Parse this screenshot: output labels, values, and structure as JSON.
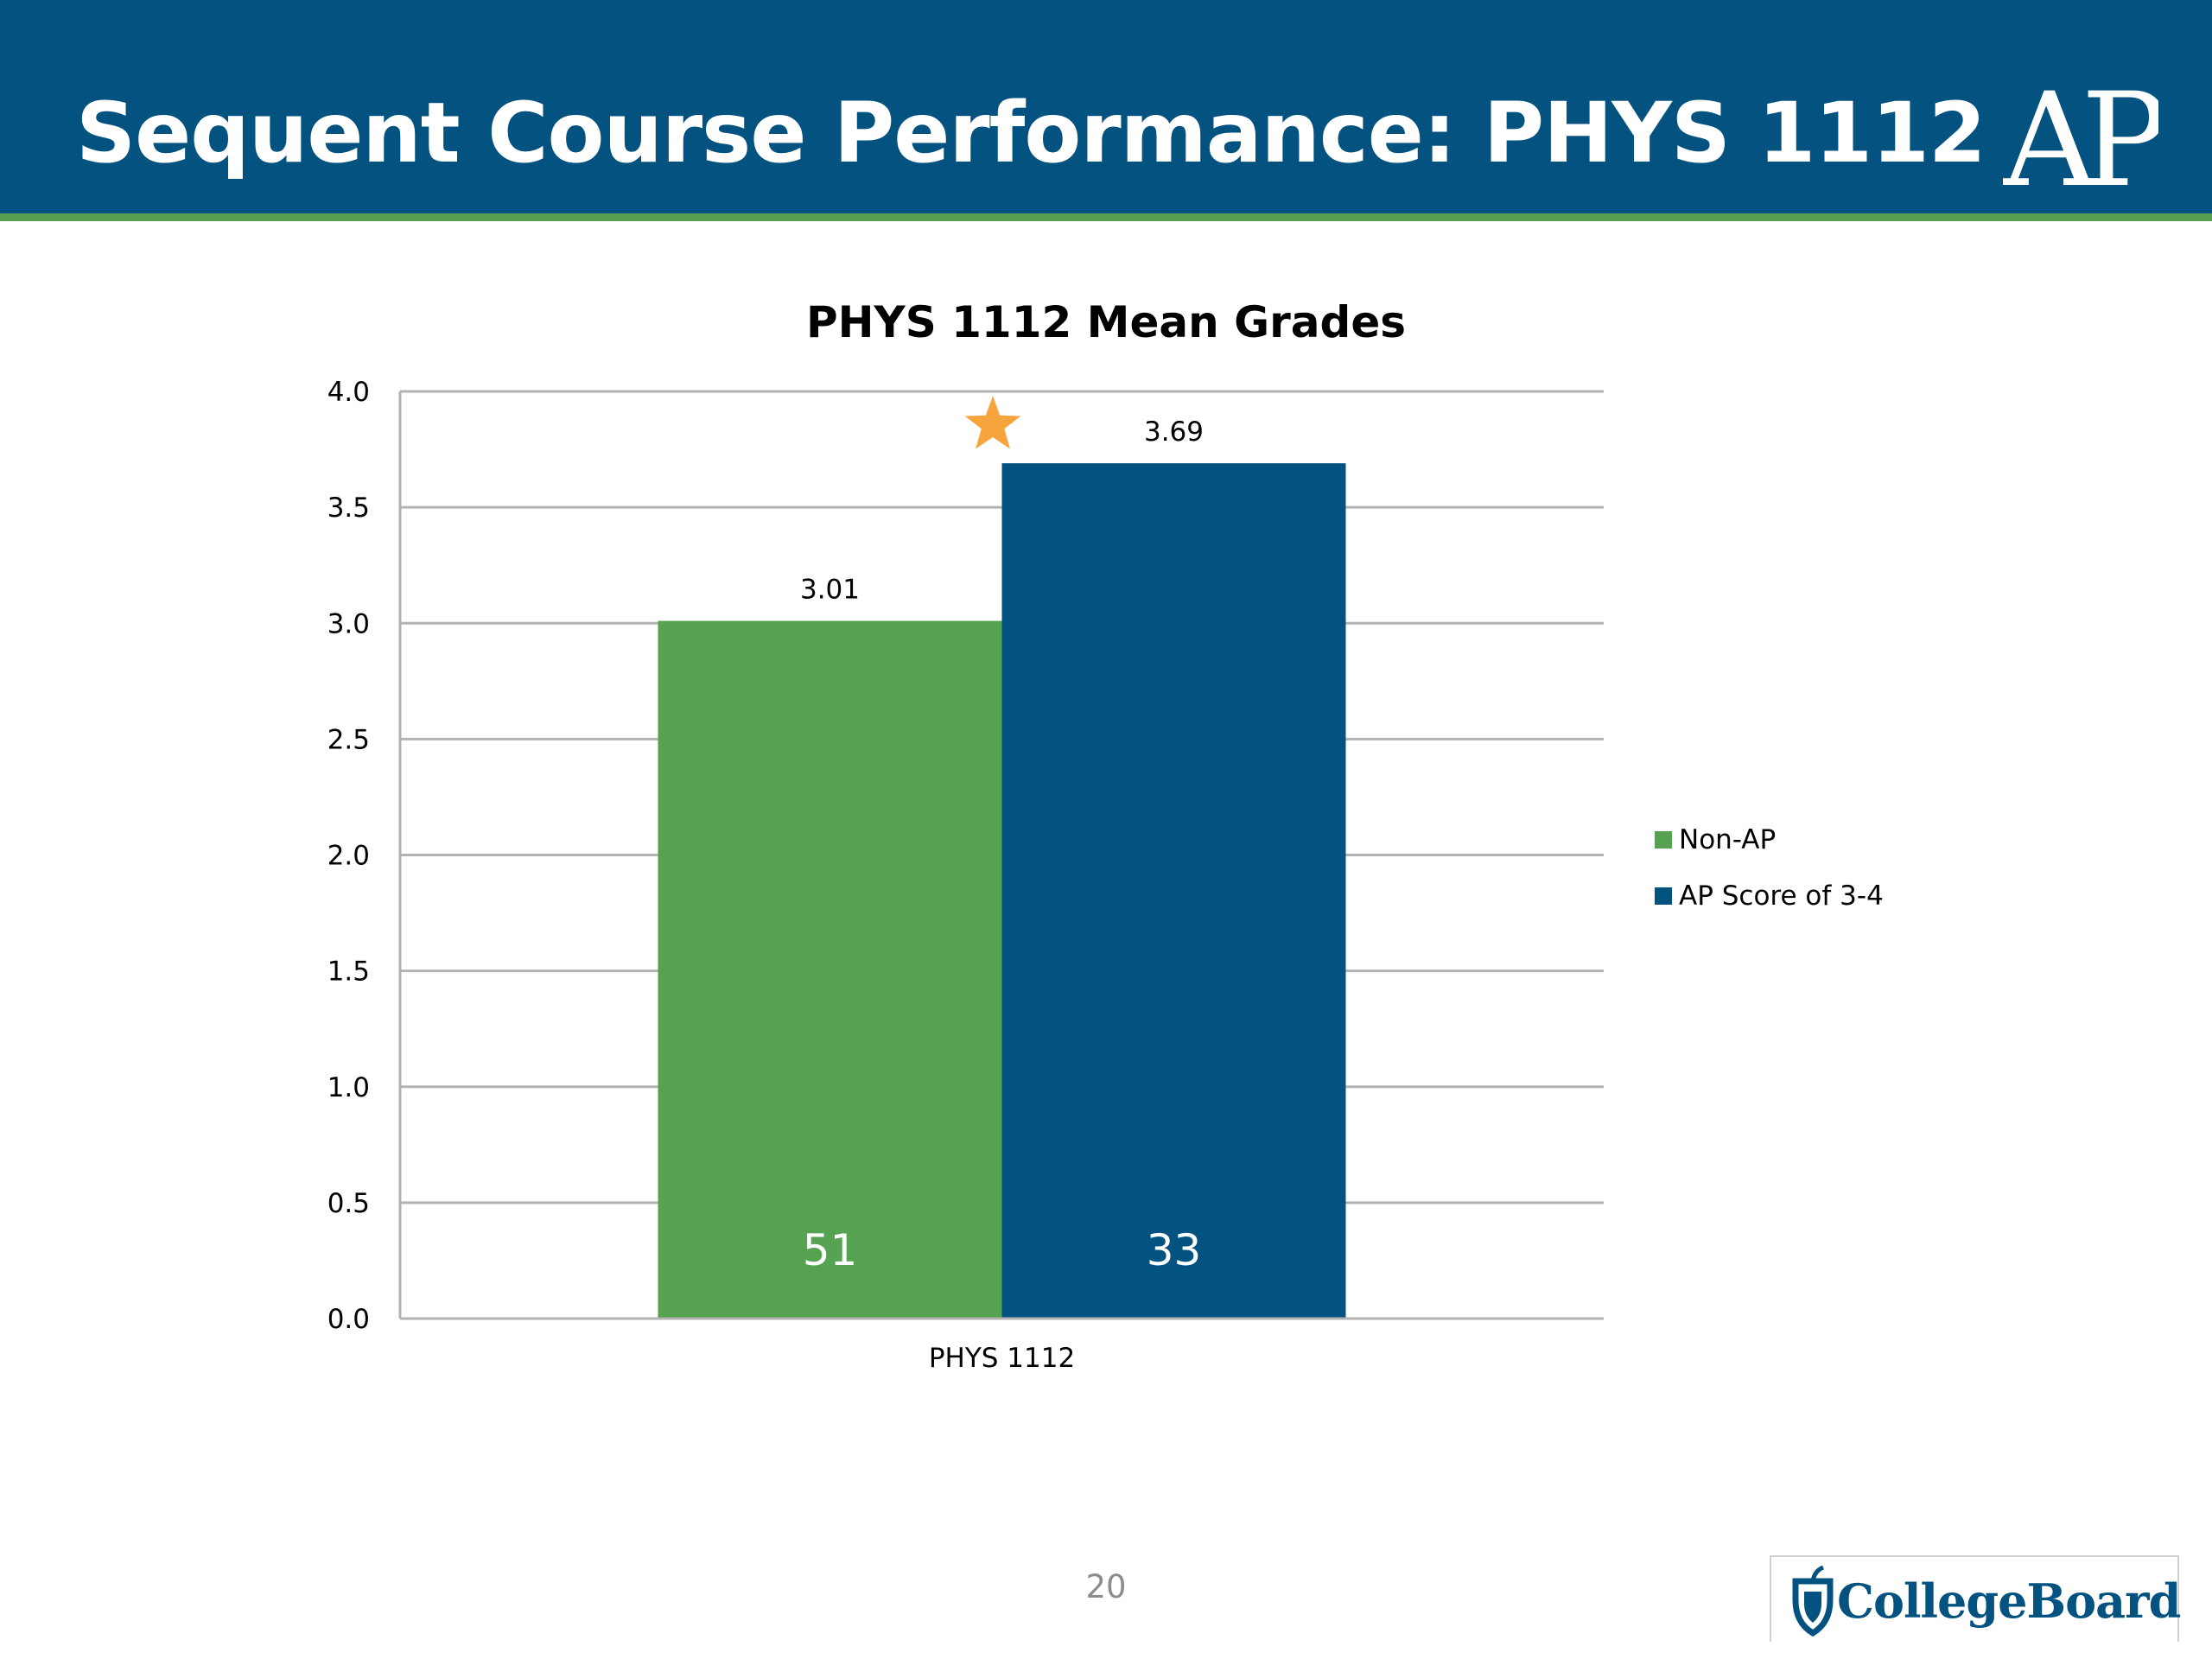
{
  "header": {
    "title": "Sequent Course Performance: PHYS 1112",
    "logo_text": "AP"
  },
  "colors": {
    "header_bg": "#03527f",
    "header_rule": "#57a04f",
    "non_ap": "#55a251",
    "ap": "#03527f",
    "star": "#f7a43c",
    "grid": "#b3b3b3"
  },
  "chart_data": {
    "type": "bar",
    "title": "PHYS 1112 Mean Grades",
    "categories": [
      "PHYS 1112"
    ],
    "series": [
      {
        "name": "Non-AP",
        "values": [
          3.01
        ],
        "value_label": "3.01",
        "count_label": "51",
        "color": "#55a251"
      },
      {
        "name": "AP Score of 3-4",
        "values": [
          3.69
        ],
        "value_label": "3.69",
        "count_label": "33",
        "color": "#03527f"
      }
    ],
    "ylim": [
      0,
      4
    ],
    "yticks": [
      "0.0",
      "0.5",
      "1.0",
      "1.5",
      "2.0",
      "2.5",
      "3.0",
      "3.5",
      "4.0"
    ],
    "xlabel": "",
    "ylabel": "",
    "grid": true,
    "legend_position": "right",
    "annotations": [
      {
        "type": "star-icon",
        "near_series": "AP Score of 3-4"
      }
    ]
  },
  "footer": {
    "page_number": "20",
    "brand": "CollegeBoard",
    "brand_icon": "acorn-shield-icon"
  }
}
